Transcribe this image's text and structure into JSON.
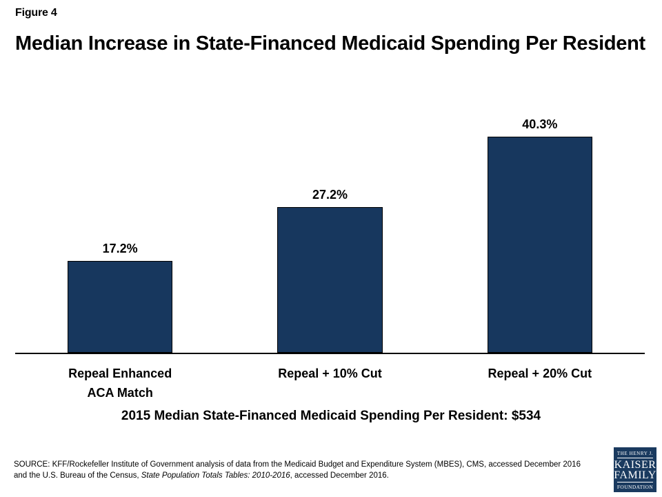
{
  "header": {
    "figure_label": "Figure 4",
    "title": "Median Increase in State-Financed Medicaid Spending Per Resident"
  },
  "chart_data": {
    "type": "bar",
    "categories": [
      "Repeal Enhanced\nACA Match",
      "Repeal + 10% Cut",
      "Repeal + 20% Cut"
    ],
    "values": [
      17.2,
      27.2,
      40.3
    ],
    "data_labels": [
      "17.2%",
      "27.2%",
      "40.3%"
    ],
    "title": "Median Increase in State-Financed Medicaid Spending Per Resident",
    "xlabel": "",
    "ylabel": "",
    "ylim": [
      0,
      45
    ],
    "gridlines": false,
    "legend": false,
    "axis_line_color": "#000000",
    "bar_color": "#17375E",
    "bar_border_color": "#000000"
  },
  "note": "2015 Median State-Financed Medicaid Spending Per Resident: $534",
  "source": {
    "line1": "SOURCE: KFF/Rockefeller Institute of Government analysis of data from the Medicaid Budget and Expenditure System (MBES), CMS, accessed December 2016",
    "line2_prefix": "and the U.S. Bureau of the Census, ",
    "line2_italic": "State Population Totals Tables: 2010-2016",
    "line2_suffix": ", accessed December 2016."
  },
  "logo": {
    "background": "#1A3A5F",
    "line1": "THE HENRY J.",
    "line2": "KAISER",
    "line3": "FAMILY",
    "line4": "FOUNDATION"
  }
}
